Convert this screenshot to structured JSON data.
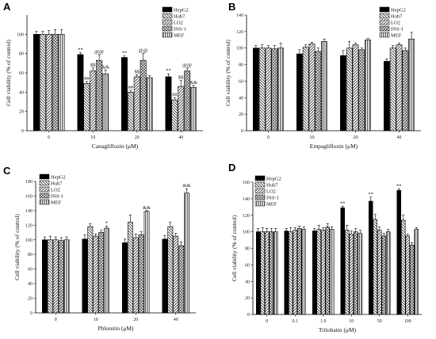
{
  "chart_data": [
    {
      "type": "bar",
      "panel": "A",
      "xlabel": "Canagliflozin (μM)",
      "ylabel": "Cell viability (% of control)",
      "categories": [
        "0",
        "10",
        "20",
        "40"
      ],
      "ylim": [
        0,
        120
      ],
      "yticks": [
        0,
        20,
        40,
        60,
        80,
        100
      ],
      "legend_position": "top-right",
      "series": [
        {
          "name": "HepG2",
          "pattern": "solid",
          "values": [
            100,
            79,
            76,
            56
          ],
          "errors": [
            3,
            2,
            1.5,
            3
          ],
          "labels": [
            "",
            "**",
            "**",
            "**"
          ]
        },
        {
          "name": "Huh7",
          "pattern": "hatch-back",
          "values": [
            100,
            49,
            40,
            32
          ],
          "errors": [
            3,
            2,
            2,
            2
          ],
          "labels": [
            "",
            "##",
            "##",
            "##"
          ]
        },
        {
          "name": "LO2",
          "pattern": "hatch-fwd",
          "values": [
            100,
            62,
            56,
            46
          ],
          "errors": [
            4,
            3,
            2,
            6
          ],
          "labels": [
            "",
            "$$",
            "$$",
            "$$"
          ]
        },
        {
          "name": "INS-1",
          "pattern": "cross",
          "values": [
            100,
            73,
            73,
            62
          ],
          "errors": [
            5,
            6,
            7,
            3
          ],
          "labels": [
            "",
            "@@",
            "@@",
            "@@"
          ]
        },
        {
          "name": "MEF",
          "pattern": "vertical",
          "values": [
            100,
            59,
            55,
            45
          ],
          "errors": [
            5,
            4,
            2,
            2
          ],
          "labels": [
            "",
            "&&",
            "",
            "&&"
          ]
        }
      ]
    },
    {
      "type": "bar",
      "panel": "B",
      "xlabel": "Empagliflozin (μM)",
      "ylabel": "Cell viability (% of control)",
      "categories": [
        "0",
        "10",
        "20",
        "40"
      ],
      "ylim": [
        0,
        140
      ],
      "yticks": [
        0,
        20,
        40,
        60,
        80,
        100,
        120,
        140
      ],
      "legend_position": "top-right",
      "series": [
        {
          "name": "HepG2",
          "pattern": "solid",
          "values": [
            100,
            93,
            91,
            84
          ],
          "errors": [
            3,
            5,
            6,
            3
          ],
          "labels": [
            "",
            "",
            "",
            ""
          ]
        },
        {
          "name": "Huh7",
          "pattern": "hatch-back",
          "values": [
            100,
            101,
            100,
            100
          ],
          "errors": [
            4,
            3,
            8,
            3
          ],
          "labels": [
            "",
            "",
            "",
            ""
          ]
        },
        {
          "name": "LO2",
          "pattern": "hatch-fwd",
          "values": [
            100,
            105,
            104,
            104
          ],
          "errors": [
            3,
            2,
            2,
            2
          ],
          "labels": [
            "",
            "",
            "",
            ""
          ]
        },
        {
          "name": "INS-1",
          "pattern": "cross",
          "values": [
            99,
            96,
            98,
            97
          ],
          "errors": [
            4,
            4,
            2,
            3
          ],
          "labels": [
            "",
            "",
            "",
            ""
          ]
        },
        {
          "name": "MEF",
          "pattern": "vertical",
          "values": [
            100,
            108,
            110,
            111
          ],
          "errors": [
            6,
            3,
            2,
            8
          ],
          "labels": [
            "",
            "",
            "",
            ""
          ]
        }
      ]
    },
    {
      "type": "bar",
      "panel": "C",
      "xlabel": "Phloretin (μM)",
      "ylabel": "Cell viability (% of control)",
      "categories": [
        "0",
        "10",
        "20",
        "40"
      ],
      "ylim": [
        0,
        180
      ],
      "yticks": [
        0,
        20,
        40,
        60,
        80,
        100,
        120,
        140,
        160,
        180
      ],
      "legend_position": "top-left",
      "series": [
        {
          "name": "HepG2",
          "pattern": "solid",
          "values": [
            100,
            101,
            96,
            101
          ],
          "errors": [
            4,
            6,
            5,
            5
          ],
          "labels": [
            "",
            "",
            "",
            ""
          ]
        },
        {
          "name": "Huh7",
          "pattern": "hatch-back",
          "values": [
            100,
            118,
            124,
            118
          ],
          "errors": [
            5,
            4,
            10,
            6
          ],
          "labels": [
            "",
            "",
            "",
            ""
          ]
        },
        {
          "name": "LO2",
          "pattern": "hatch-fwd",
          "values": [
            100,
            105,
            103,
            105
          ],
          "errors": [
            4,
            3,
            5,
            4
          ],
          "labels": [
            "",
            "",
            "",
            ""
          ]
        },
        {
          "name": "INS-1",
          "pattern": "cross",
          "values": [
            99,
            110,
            107,
            92
          ],
          "errors": [
            4,
            3,
            4,
            5
          ],
          "labels": [
            "",
            "",
            "",
            ""
          ]
        },
        {
          "name": "MEF",
          "pattern": "vertical",
          "values": [
            100,
            116,
            139,
            164
          ],
          "errors": [
            4,
            3,
            1,
            6
          ],
          "labels": [
            "",
            "*",
            "&&",
            "&&"
          ]
        }
      ]
    },
    {
      "type": "bar",
      "panel": "D",
      "xlabel": "Trilobatin (μM)",
      "ylabel": "Cell viability (% of control)",
      "categories": [
        "0",
        "0.1",
        "1.0",
        "10",
        "50",
        "100"
      ],
      "ylim": [
        0,
        160
      ],
      "yticks": [
        0,
        20,
        40,
        60,
        80,
        100,
        120,
        140,
        160
      ],
      "legend_position": "top-left",
      "series": [
        {
          "name": "HepG2",
          "pattern": "solid",
          "values": [
            100,
            101,
            101,
            129,
            137,
            150
          ],
          "errors": [
            4,
            3,
            3,
            2,
            5,
            2
          ],
          "labels": [
            "",
            "",
            "",
            "**",
            "**",
            "**"
          ]
        },
        {
          "name": "Huh7",
          "pattern": "hatch-back",
          "values": [
            100,
            100,
            103,
            102,
            115,
            114
          ],
          "errors": [
            5,
            5,
            5,
            6,
            6,
            6
          ],
          "labels": [
            "",
            "",
            "",
            "",
            "",
            ""
          ]
        },
        {
          "name": "LO2",
          "pattern": "hatch-fwd",
          "values": [
            100,
            102,
            102,
            97,
            102,
            95
          ],
          "errors": [
            4,
            3,
            3,
            4,
            4,
            2
          ],
          "labels": [
            "",
            "",
            "",
            "",
            "",
            ""
          ]
        },
        {
          "name": "INS-1",
          "pattern": "cross",
          "values": [
            100,
            104,
            106,
            100,
            95,
            84
          ],
          "errors": [
            4,
            3,
            4,
            4,
            3,
            3
          ],
          "labels": [
            "",
            "",
            "",
            "",
            "",
            ""
          ]
        },
        {
          "name": "MEF",
          "pattern": "vertical",
          "values": [
            100,
            103,
            103,
            98,
            100,
            103
          ],
          "errors": [
            4,
            3,
            3,
            4,
            3,
            2
          ],
          "labels": [
            "",
            "",
            "",
            "",
            "",
            ""
          ]
        }
      ]
    }
  ]
}
